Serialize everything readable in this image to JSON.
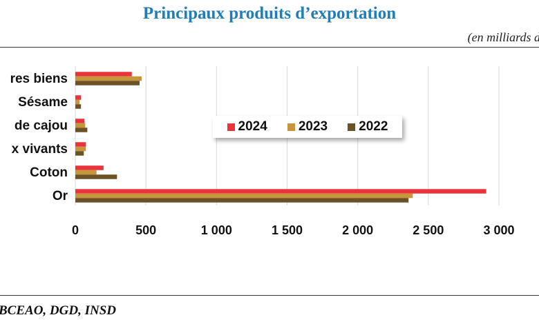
{
  "header": {
    "title": "Principaux produits d’exportation",
    "unit": "(en  milliards d"
  },
  "footer": {
    "source": "BCEAO, DGD, INSD"
  },
  "chart_data": {
    "type": "bar",
    "orientation": "horizontal",
    "categories": [
      "res biens",
      "Sésame",
      "de cajou",
      "x vivants",
      "Coton",
      "Or"
    ],
    "series": [
      {
        "name": "2024",
        "color": "#e8343a",
        "values": [
          400,
          40,
          65,
          75,
          200,
          2910
        ]
      },
      {
        "name": "2023",
        "color": "#c8963a",
        "values": [
          470,
          30,
          70,
          75,
          150,
          2390
        ]
      },
      {
        "name": "2022",
        "color": "#6b5224",
        "values": [
          455,
          40,
          85,
          60,
          295,
          2360
        ]
      }
    ],
    "x_ticks": [
      "0",
      "500",
      "1 000",
      "1 500",
      "2 000",
      "2 500",
      "3 000"
    ],
    "xlim": [
      0,
      3000
    ],
    "grid": true,
    "legend_position": "center"
  }
}
